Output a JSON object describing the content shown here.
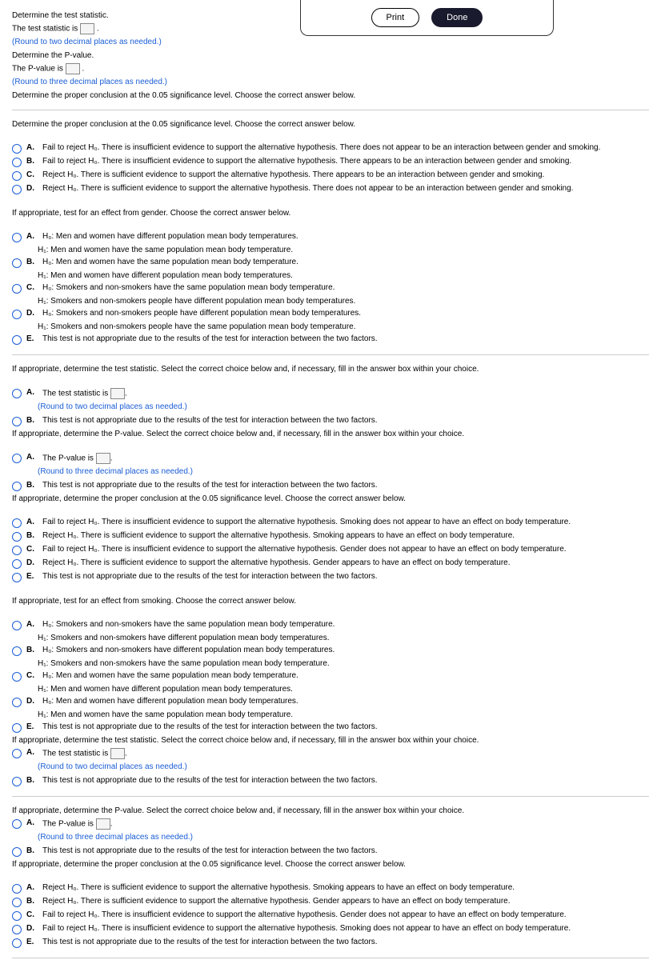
{
  "dialog": {
    "print": "Print",
    "done": "Done"
  },
  "top": {
    "q1": "Determine the test statistic.",
    "ts_prefix": "The test statistic is ",
    "ts_suffix": ".",
    "hint2dp": "(Round to two decimal places as needed.)",
    "q2": "Determine the P-value.",
    "pv_prefix": "The P-value is ",
    "pv_suffix": ".",
    "hint3dp": "(Round to three decimal places as needed.)",
    "q3": "Determine the proper conclusion at the 0.05 significance level. Choose the correct answer below."
  },
  "conc1": {
    "prompt": "Determine the proper conclusion at the 0.05 significance level. Choose the correct answer below.",
    "a": "Fail to reject H₀. There is insufficient evidence to support the alternative hypothesis. There does not appear to be an interaction between gender and smoking.",
    "b": "Fail to reject H₀. There is insufficient evidence to support the alternative hypothesis. There appears to be an interaction between gender and smoking.",
    "c": "Reject H₀. There is sufficient evidence to support the alternative hypothesis. There appears to be an interaction between gender and smoking.",
    "d": "Reject H₀. There is sufficient evidence to support the alternative hypothesis. There does not appear to be an interaction between gender and smoking."
  },
  "gender": {
    "prompt": "If appropriate, test for an effect from gender. Choose the correct answer below.",
    "a1": "H₀: Men and women have different population mean body temperatures.",
    "a2": "H₁: Men and women have the same population mean body temperature.",
    "b1": "H₀: Men and women have the same population mean body temperature.",
    "b2": "H₁: Men and women have different population mean body temperatures.",
    "c1": "H₀: Smokers and non-smokers have the same population mean body temperature.",
    "c2": "H₁: Smokers and non-smokers people have different population mean body temperatures.",
    "d1": "H₀: Smokers and non-smokers people have different population mean body temperatures.",
    "d2": "H₁: Smokers and non-smokers people have the same population mean body temperature.",
    "e": "This test is not appropriate due to the results of the test for interaction between the two factors."
  },
  "ts_sel": {
    "prompt": "If appropriate, determine the test statistic. Select the correct choice below and, if necessary, fill in the answer box within your choice.",
    "a_prefix": "The test statistic is ",
    "a_suffix": ".",
    "a_hint": "(Round to two decimal places as needed.)",
    "b": "This test is not appropriate due to the results of the test for interaction between the two factors."
  },
  "pv_sel": {
    "prompt": "If appropriate, determine the P-value. Select the correct choice below and, if necessary, fill in the answer box within your choice.",
    "a_prefix": "The P-value is ",
    "a_suffix": ".",
    "a_hint": "(Round to three decimal places as needed.)",
    "b": "This test is not appropriate due to the results of the test for interaction between the two factors."
  },
  "conc_gender": {
    "prompt": "If appropriate, determine the proper conclusion at the 0.05 significance level. Choose the correct answer below.",
    "a": "Fail to reject H₀. There is insufficient evidence to support the alternative hypothesis. Smoking does not appear to have an effect on body temperature.",
    "b": "Reject H₀. There is sufficient evidence to support the alternative hypothesis. Smoking appears to have an effect on body temperature.",
    "c": "Fail to reject H₀. There is insufficient evidence to support the alternative hypothesis. Gender does not appear to have an effect on body temperature.",
    "d": "Reject H₀. There is sufficient evidence to support the alternative hypothesis. Gender appears to have an effect on body temperature.",
    "e": "This test is not appropriate due to the results of the test for interaction between the two factors."
  },
  "smoking": {
    "prompt": "If appropriate, test for an effect from smoking. Choose the correct answer below.",
    "a1": "H₀: Smokers and non-smokers have the same population mean body temperature.",
    "a2": "H₁: Smokers and non-smokers have different population mean body temperatures.",
    "b1": "H₀: Smokers and non-smokers have different population mean body temperatures.",
    "b2": "H₁: Smokers and non-smokers have the same population mean body temperature.",
    "c1": "H₀: Men and women have the same population mean body temperature.",
    "c2": "H₁: Men and women have different population mean body temperatures.",
    "d1": "H₀: Men and women have different population mean body temperatures.",
    "d2": "H₁: Men and women have the same population mean body temperature.",
    "e": "This test is not appropriate due to the results of the test for interaction between the two factors."
  },
  "conc_smoking": {
    "prompt": "If appropriate, determine the proper conclusion at the 0.05 significance level. Choose the correct answer below.",
    "a": "Reject H₀. There is sufficient evidence to support the alternative hypothesis. Smoking appears to have an effect on body temperature.",
    "b": "Reject H₀. There is sufficient evidence to support the alternative hypothesis. Gender appears to have an effect on body temperature.",
    "c": "Fail to reject H₀. There is insufficient evidence to support the alternative hypothesis. Gender does not appear to have an effect on body temperature.",
    "d": "Fail to reject H₀. There is insufficient evidence to support the alternative hypothesis. Smoking does not appear to have an effect on body temperature.",
    "e": "This test is not appropriate due to the results of the test for interaction between the two factors."
  },
  "letters": {
    "a": "A.",
    "b": "B.",
    "c": "C.",
    "d": "D.",
    "e": "E."
  }
}
